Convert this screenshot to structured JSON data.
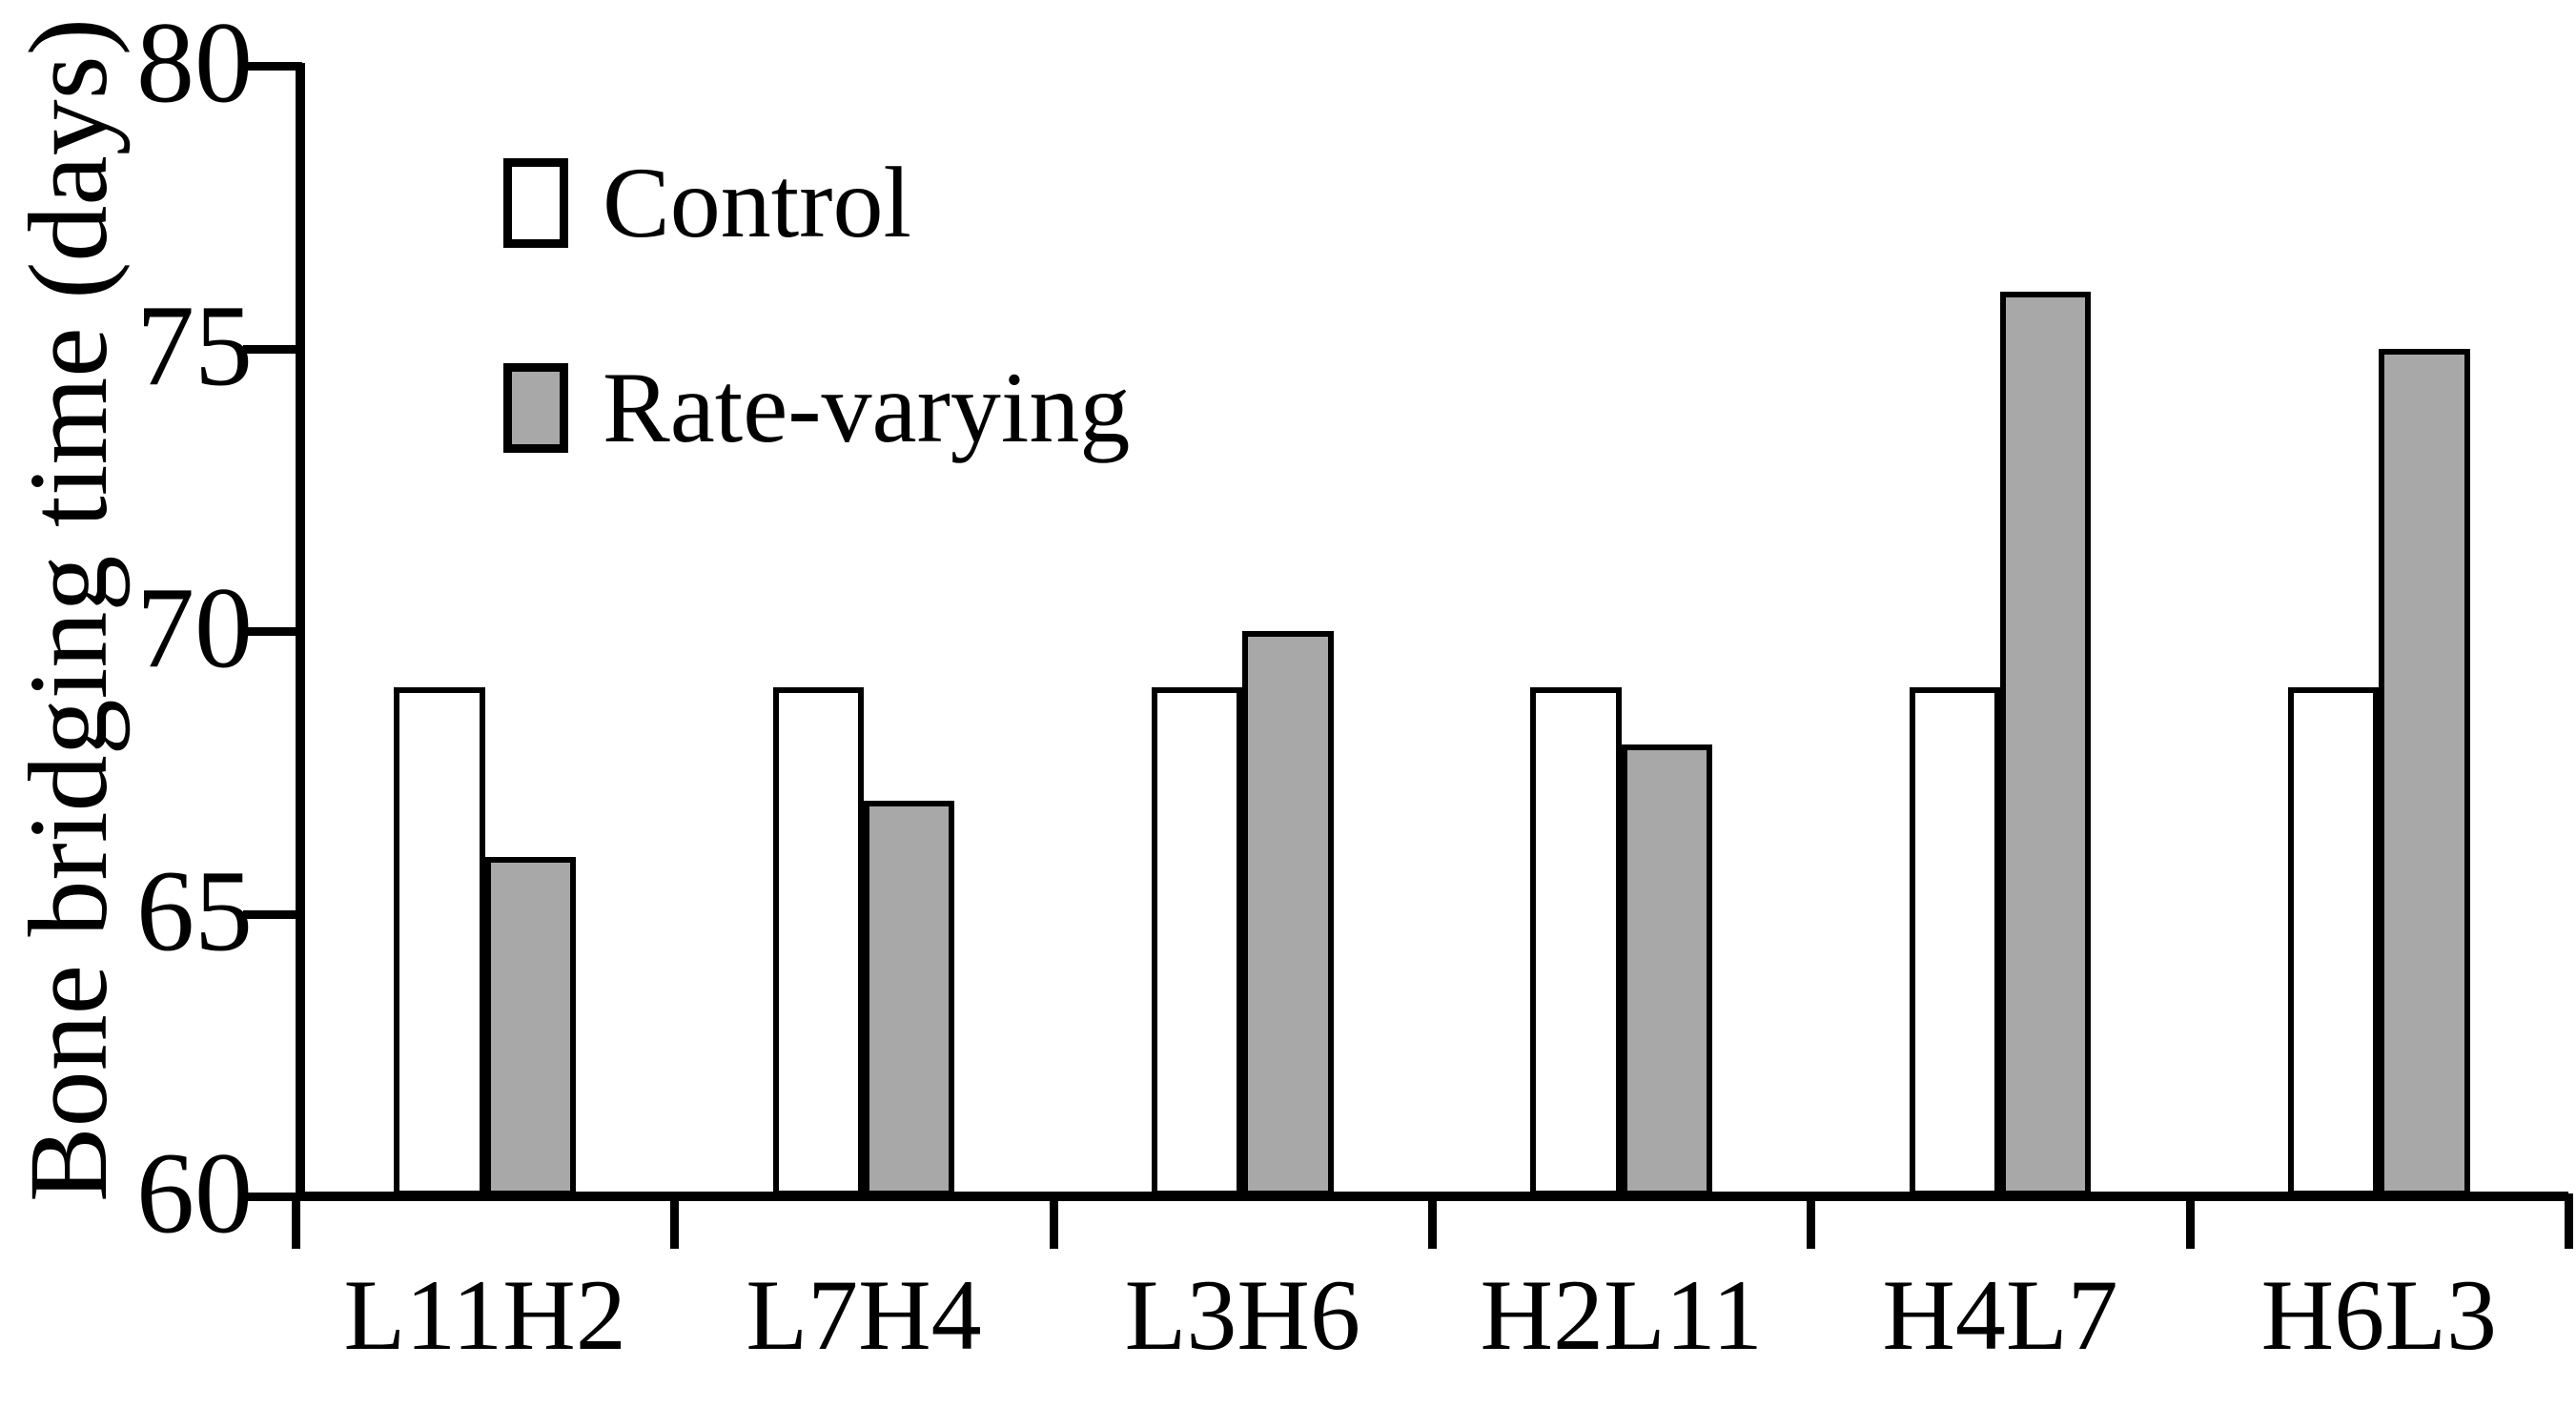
{
  "chart_data": {
    "type": "bar",
    "title": "",
    "ylabel": "Bone bridging time (days)",
    "xlabel": "",
    "categories": [
      "L11H2",
      "L7H4",
      "L3H6",
      "H2L11",
      "H4L7",
      "H6L3"
    ],
    "series": [
      {
        "name": "Control",
        "values": [
          69,
          69,
          69,
          69,
          69,
          69
        ],
        "fill": "#ffffff"
      },
      {
        "name": "Rate-varying",
        "values": [
          66,
          67,
          70,
          68,
          76,
          75
        ],
        "fill": "#a8a8a8"
      }
    ],
    "ylim": [
      60,
      80
    ],
    "yticks": [
      60,
      65,
      70,
      75,
      80
    ],
    "grid": false,
    "legend_position": "top-left"
  },
  "legend": {
    "items": [
      {
        "label": "Control",
        "swatch": "#ffffff"
      },
      {
        "label": "Rate-varying",
        "swatch": "#a8a8a8"
      }
    ]
  },
  "colors": {
    "background": "#ffffff",
    "axis": "#000000",
    "bar_outline": "#000000",
    "control_fill": "#ffffff",
    "rate_varying_fill": "#a8a8a8",
    "text": "#000000"
  }
}
